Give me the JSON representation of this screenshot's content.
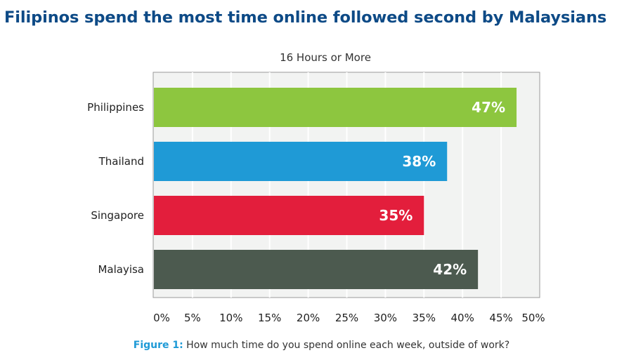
{
  "page": {
    "title": "Filipinos spend the most time online followed second by Malaysians",
    "figure_label": "Figure 1:",
    "figure_caption": "How much time do you spend online each week, outside of work?"
  },
  "chart_data": {
    "type": "bar",
    "orientation": "horizontal",
    "title": "16 Hours or More",
    "categories": [
      "Philippines",
      "Thailand",
      "Singapore",
      "Malayisa"
    ],
    "values": [
      47,
      38,
      35,
      42
    ],
    "value_labels": [
      "47%",
      "38%",
      "35%",
      "42%"
    ],
    "colors": [
      "#8dc63f",
      "#1f9ad6",
      "#e31e3c",
      "#4c5a4f"
    ],
    "xlim": [
      0,
      50
    ],
    "x_ticks": [
      0,
      5,
      10,
      15,
      20,
      25,
      30,
      35,
      40,
      45,
      50
    ],
    "x_tick_labels": [
      "0%",
      "5%",
      "10%",
      "15%",
      "20%",
      "25%",
      "30%",
      "35%",
      "40%",
      "45%",
      "50%"
    ],
    "grid": true
  }
}
